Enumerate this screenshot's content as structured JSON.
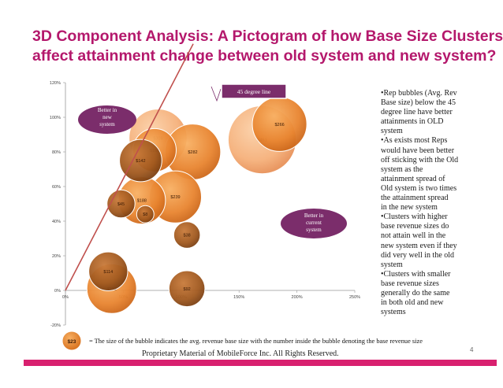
{
  "slide": {
    "title_line1": "3D Component Analysis: A Pictogram of how Base Size Clusters",
    "title_line2": "affect attainment change between old system and new system?",
    "page_number": "4",
    "footer": "Proprietary Material of MobileForce Inc. All Rights Reserved.",
    "legend_bubble_label": "$23",
    "legend_text": "=  The size of the bubble indicates the avg. revenue base size with the number inside the bubble denoting the base revenue size"
  },
  "bullets": [
    "•Rep bubbles (Avg. Rev",
    "Base size) below the 45",
    "degree line have better",
    "attainments in OLD",
    "system",
    "•As exists most Reps",
    "would have been better",
    "off sticking with the Old",
    "system as the",
    "attainment spread of",
    "Old system is two times",
    "the attainment spread",
    "in the new system",
    "•Clusters with higher",
    "base revenue sizes do",
    "not attain well in the",
    "new system even if they",
    "did very well in the old",
    "system",
    "•Clusters with smaller",
    "base revenue sizes",
    "generally do the same",
    "in both old and new",
    "systems"
  ],
  "callouts": {
    "line_label": "45 degree line",
    "better_new": [
      "Better in",
      "new",
      "system"
    ],
    "better_current": [
      "Better in",
      "current",
      "system"
    ]
  },
  "colors": {
    "title": "#b4186c",
    "accent_bar": "#d8206f",
    "callout_fill": "#7b2d6b",
    "line": "#c0504d",
    "bubble_orange": "#e8842f",
    "bubble_dark": "#a0581e",
    "bubble_light": "#f5b07a"
  },
  "chart_data": {
    "type": "scatter",
    "subtype": "bubble",
    "title": "",
    "xlabel": "",
    "ylabel": "",
    "xlim": [
      0,
      2.5
    ],
    "ylim": [
      -0.2,
      1.2
    ],
    "x_ticks": [
      {
        "v": 0,
        "label": "0%"
      },
      {
        "v": 0.5,
        "label": "50%"
      },
      {
        "v": 1.0,
        "label": "100%"
      },
      {
        "v": 1.5,
        "label": "150%"
      },
      {
        "v": 2.0,
        "label": "200%"
      },
      {
        "v": 2.5,
        "label": "250%"
      }
    ],
    "y_ticks": [
      {
        "v": -0.2,
        "label": "-20%"
      },
      {
        "v": 0,
        "label": "0%"
      },
      {
        "v": 0.2,
        "label": "20%"
      },
      {
        "v": 0.4,
        "label": "40%"
      },
      {
        "v": 0.6,
        "label": "60%"
      },
      {
        "v": 0.8,
        "label": "80%"
      },
      {
        "v": 1.0,
        "label": "100%"
      },
      {
        "v": 1.2,
        "label": "120%"
      }
    ],
    "grid": false,
    "reference_line": {
      "label": "45 degree line",
      "from": [
        0,
        0
      ],
      "to": [
        1.2,
        1.2
      ]
    },
    "points": [
      {
        "label": "$266",
        "x": 1.85,
        "y": 0.96,
        "size": 266,
        "shade": "orange"
      },
      {
        "label": "$451",
        "x": 1.7,
        "y": 0.87,
        "size": 451,
        "shade": "light"
      },
      {
        "label": "$309",
        "x": 0.8,
        "y": 0.88,
        "size": 309,
        "shade": "light"
      },
      {
        "label": "$150",
        "x": 0.77,
        "y": 0.81,
        "size": 150,
        "shade": "orange"
      },
      {
        "label": "$282",
        "x": 1.1,
        "y": 0.8,
        "size": 282,
        "shade": "orange"
      },
      {
        "label": "$142",
        "x": 0.65,
        "y": 0.75,
        "size": 142,
        "shade": "dark"
      },
      {
        "label": "$239",
        "x": 0.95,
        "y": 0.54,
        "size": 239,
        "shade": "orange"
      },
      {
        "label": "$188",
        "x": 0.66,
        "y": 0.52,
        "size": 188,
        "shade": "orange"
      },
      {
        "label": "$45",
        "x": 0.48,
        "y": 0.5,
        "size": 45,
        "shade": "dark"
      },
      {
        "label": "$8",
        "x": 0.69,
        "y": 0.44,
        "size": 8,
        "shade": "dark"
      },
      {
        "label": "$38",
        "x": 1.05,
        "y": 0.32,
        "size": 38,
        "shade": "dark"
      },
      {
        "label": "$114",
        "x": 0.37,
        "y": 0.11,
        "size": 114,
        "shade": "dark"
      },
      {
        "label": "$212",
        "x": 0.4,
        "y": 0.01,
        "size": 212,
        "shade": "orange"
      },
      {
        "label": "$92",
        "x": 1.05,
        "y": 0.01,
        "size": 92,
        "shade": "dark"
      }
    ]
  }
}
